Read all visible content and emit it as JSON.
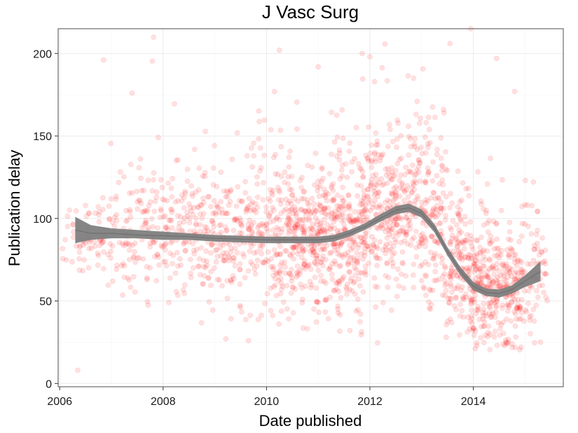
{
  "chart_data": {
    "type": "scatter",
    "title": "J Vasc Surg",
    "xlabel": "Date published",
    "ylabel": "Publication delay",
    "xlim": [
      2005.97,
      2015.74
    ],
    "ylim": [
      -2,
      215
    ],
    "x_ticks": [
      2006,
      2008,
      2010,
      2012,
      2014
    ],
    "x_tick_labels": [
      "2006",
      "2008",
      "2010",
      "2012",
      "2014"
    ],
    "y_ticks": [
      0,
      50,
      100,
      150,
      200
    ],
    "y_tick_labels": [
      "0",
      "50",
      "100",
      "150",
      "200"
    ],
    "grid": true,
    "point_count": 2200,
    "point_color": "#ff0000",
    "point_opacity": 0.12,
    "smooth_color": "#808080",
    "density_profile": [
      {
        "x": 2006.3,
        "y": 89,
        "sd": 13,
        "n": 25
      },
      {
        "x": 2006.7,
        "y": 89,
        "sd": 13,
        "n": 45
      },
      {
        "x": 2007.2,
        "y": 90,
        "sd": 15,
        "n": 60
      },
      {
        "x": 2007.7,
        "y": 91,
        "sd": 17,
        "n": 70
      },
      {
        "x": 2008.2,
        "y": 90,
        "sd": 17,
        "n": 80
      },
      {
        "x": 2008.7,
        "y": 88,
        "sd": 18,
        "n": 90
      },
      {
        "x": 2009.2,
        "y": 87,
        "sd": 20,
        "n": 95
      },
      {
        "x": 2009.7,
        "y": 87,
        "sd": 23,
        "n": 110
      },
      {
        "x": 2010.2,
        "y": 87,
        "sd": 24,
        "n": 130
      },
      {
        "x": 2010.7,
        "y": 87,
        "sd": 22,
        "n": 170
      },
      {
        "x": 2011.2,
        "y": 87,
        "sd": 22,
        "n": 185
      },
      {
        "x": 2011.7,
        "y": 91,
        "sd": 23,
        "n": 175
      },
      {
        "x": 2012.2,
        "y": 100,
        "sd": 24,
        "n": 165
      },
      {
        "x": 2012.7,
        "y": 108,
        "sd": 25,
        "n": 150
      },
      {
        "x": 2013.2,
        "y": 96,
        "sd": 26,
        "n": 150
      },
      {
        "x": 2013.7,
        "y": 72,
        "sd": 23,
        "n": 155
      },
      {
        "x": 2014.2,
        "y": 57,
        "sd": 17,
        "n": 190
      },
      {
        "x": 2014.7,
        "y": 56,
        "sd": 17,
        "n": 160
      },
      {
        "x": 2015.2,
        "y": 65,
        "sd": 18,
        "n": 75
      }
    ],
    "outliers": [
      {
        "x": 2006.35,
        "y": 8
      },
      {
        "x": 2006.85,
        "y": 196
      },
      {
        "x": 2007.4,
        "y": 176
      },
      {
        "x": 2009.65,
        "y": 26
      },
      {
        "x": 2010.25,
        "y": 202
      },
      {
        "x": 2011.85,
        "y": 200
      },
      {
        "x": 2012.0,
        "y": 198
      },
      {
        "x": 2013.55,
        "y": 206
      },
      {
        "x": 2013.95,
        "y": 216
      },
      {
        "x": 2014.45,
        "y": 197
      },
      {
        "x": 2014.8,
        "y": 177
      },
      {
        "x": 2014.75,
        "y": 24
      },
      {
        "x": 2015.3,
        "y": 25
      }
    ],
    "smooth": [
      {
        "x": 2006.3,
        "y": 93,
        "lo": 85,
        "hi": 101
      },
      {
        "x": 2006.6,
        "y": 91,
        "lo": 87,
        "hi": 96
      },
      {
        "x": 2007.0,
        "y": 91,
        "lo": 88,
        "hi": 94
      },
      {
        "x": 2007.5,
        "y": 90,
        "lo": 88,
        "hi": 93
      },
      {
        "x": 2008.0,
        "y": 89.5,
        "lo": 87,
        "hi": 92
      },
      {
        "x": 2008.5,
        "y": 89,
        "lo": 87,
        "hi": 91
      },
      {
        "x": 2009.0,
        "y": 88,
        "lo": 86,
        "hi": 90
      },
      {
        "x": 2009.5,
        "y": 87.5,
        "lo": 85.5,
        "hi": 89.5
      },
      {
        "x": 2010.0,
        "y": 87,
        "lo": 85,
        "hi": 89
      },
      {
        "x": 2010.5,
        "y": 87,
        "lo": 85,
        "hi": 89
      },
      {
        "x": 2011.0,
        "y": 87,
        "lo": 85,
        "hi": 89
      },
      {
        "x": 2011.3,
        "y": 88,
        "lo": 86,
        "hi": 90
      },
      {
        "x": 2011.6,
        "y": 91,
        "lo": 89,
        "hi": 93
      },
      {
        "x": 2011.9,
        "y": 95,
        "lo": 93,
        "hi": 97
      },
      {
        "x": 2012.2,
        "y": 100,
        "lo": 98,
        "hi": 102.5
      },
      {
        "x": 2012.5,
        "y": 105,
        "lo": 102.5,
        "hi": 107.5
      },
      {
        "x": 2012.75,
        "y": 106.5,
        "lo": 104,
        "hi": 109
      },
      {
        "x": 2013.0,
        "y": 103,
        "lo": 100.5,
        "hi": 105.5
      },
      {
        "x": 2013.25,
        "y": 94,
        "lo": 91.5,
        "hi": 96.5
      },
      {
        "x": 2013.5,
        "y": 80,
        "lo": 77.5,
        "hi": 82.5
      },
      {
        "x": 2013.75,
        "y": 68,
        "lo": 65.5,
        "hi": 70.5
      },
      {
        "x": 2014.0,
        "y": 59,
        "lo": 56.5,
        "hi": 61.5
      },
      {
        "x": 2014.25,
        "y": 55,
        "lo": 53,
        "hi": 57.5
      },
      {
        "x": 2014.5,
        "y": 54.5,
        "lo": 52,
        "hi": 57
      },
      {
        "x": 2014.75,
        "y": 57,
        "lo": 54.5,
        "hi": 59.5
      },
      {
        "x": 2015.0,
        "y": 62,
        "lo": 58.5,
        "hi": 65.5
      },
      {
        "x": 2015.3,
        "y": 68,
        "lo": 62,
        "hi": 74
      }
    ]
  }
}
